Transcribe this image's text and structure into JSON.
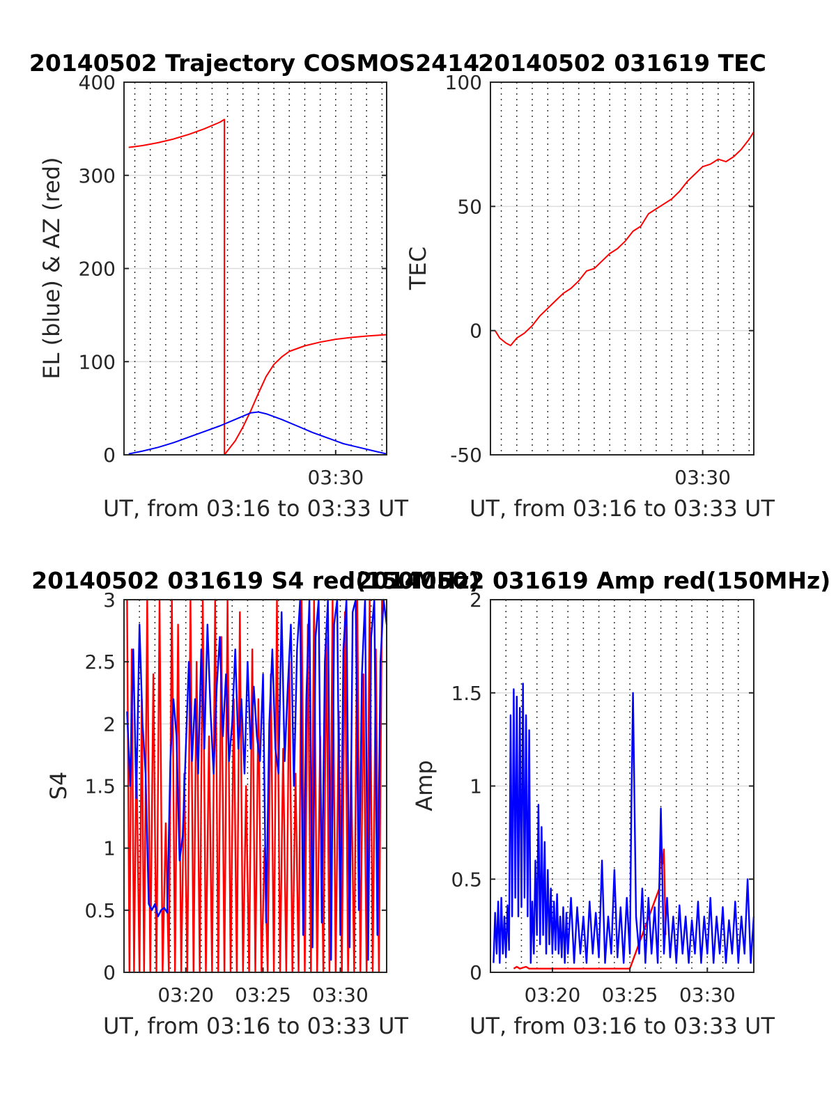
{
  "colors": {
    "el": "#0000ff",
    "az": "#ff0000",
    "s4_red": "#ff0000",
    "s4_blue": "#0000ff",
    "tec": "#ff0000",
    "amp_red": "#ff0000",
    "amp_blue": "#0000ff",
    "axis": "#262626",
    "grid": "#dddddd"
  },
  "chart_data": [
    {
      "id": "traj",
      "type": "line",
      "title": "20140502 Trajectory COSMOS2414",
      "xlabel": "UT, from 03:16 to 03:33 UT",
      "ylabel": "EL (blue) & AZ (red)",
      "xlim": [
        196.3,
        213.3
      ],
      "ylim": [
        0,
        400
      ],
      "yticks": [
        0,
        100,
        200,
        300,
        400
      ],
      "xticks": [
        {
          "x": 210,
          "label": "03:30"
        }
      ],
      "dotted_minor_x": [
        197,
        198,
        199,
        200,
        201,
        202,
        203,
        204,
        205,
        206,
        207,
        208,
        209,
        210,
        211,
        212,
        213
      ],
      "grid": true,
      "series": [
        {
          "color_key": "az",
          "x": [
            196.6,
            197.5,
            198.5,
            199.5,
            200.5,
            201.5,
            202.5,
            202.8,
            202.8,
            203.5,
            204.0,
            204.5,
            205.0,
            205.5,
            206.0,
            206.5,
            207.0,
            208.0,
            209.0,
            210.0,
            211.0,
            212.0,
            213.3
          ],
          "y": [
            330,
            332,
            335,
            339,
            344,
            350,
            357,
            360,
            0,
            15,
            30,
            47,
            66,
            84,
            97,
            105,
            111,
            117,
            121,
            124,
            126,
            127.5,
            129
          ]
        },
        {
          "name": "",
          "color_key": "el",
          "x": [
            196.6,
            197.5,
            198.5,
            199.5,
            200.5,
            201.5,
            202.5,
            203.5,
            204.5,
            205.0,
            205.5,
            206.5,
            207.5,
            208.5,
            209.5,
            210.5,
            211.5,
            212.5,
            213.3
          ],
          "y": [
            1,
            4,
            8,
            13,
            19,
            25,
            31,
            38,
            45,
            46,
            44,
            38,
            31,
            24,
            18,
            12,
            8,
            4,
            1
          ]
        }
      ]
    },
    {
      "id": "tec",
      "type": "line",
      "title": "20140502 031619 TEC",
      "xlabel": "UT, from 03:16 to 03:33 UT",
      "ylabel": "TEC",
      "xlim": [
        196.3,
        213.3
      ],
      "ylim": [
        -50,
        100
      ],
      "yticks": [
        -50,
        0,
        50,
        100
      ],
      "xticks": [
        {
          "x": 210,
          "label": "03:30"
        }
      ],
      "dotted_minor_x": [
        197,
        198,
        199,
        200,
        201,
        202,
        203,
        204,
        205,
        206,
        207,
        208,
        209,
        210,
        211,
        212,
        213
      ],
      "grid": true,
      "series": [
        {
          "color_key": "tec",
          "x": [
            196.6,
            196.9,
            197.3,
            197.6,
            198.0,
            198.5,
            199.0,
            199.5,
            200.0,
            200.5,
            201.0,
            201.5,
            202.0,
            202.5,
            203.0,
            203.5,
            204.0,
            204.5,
            205.0,
            205.5,
            206.0,
            206.5,
            207.0,
            207.5,
            208.0,
            208.5,
            209.0,
            209.5,
            210.0,
            210.5,
            211.0,
            211.5,
            212.0,
            212.5,
            213.0,
            213.3
          ],
          "y": [
            0,
            -3,
            -5,
            -6,
            -3,
            -1,
            2,
            6,
            9,
            12,
            15,
            17,
            20,
            24,
            25,
            28,
            31,
            33,
            36,
            40,
            42,
            47,
            49,
            51,
            53,
            56,
            60,
            63,
            66,
            67,
            69,
            68,
            70,
            73,
            77,
            80
          ]
        }
      ]
    },
    {
      "id": "s4",
      "type": "line",
      "title": "20140502 031619 S4 red(150MHz)",
      "xlabel": "UT, from 03:16 to 03:33 UT",
      "ylabel": "S4",
      "xlim": [
        196.0,
        213.0
      ],
      "ylim": [
        0,
        3
      ],
      "yticks": [
        0,
        0.5,
        1,
        1.5,
        2,
        2.5,
        3
      ],
      "xticks": [
        {
          "x": 200,
          "label": "03:20"
        },
        {
          "x": 205,
          "label": "03:25"
        },
        {
          "x": 210,
          "label": "03:30"
        }
      ],
      "dotted_minor_x": [
        197,
        198,
        199,
        200,
        201,
        202,
        203,
        204,
        205,
        206,
        207,
        208,
        209,
        210,
        211,
        212,
        213
      ],
      "grid": true,
      "series": [
        {
          "color_key": "s4_red",
          "x": [
            196.2,
            196.35,
            196.5,
            196.65,
            196.8,
            197.0,
            197.15,
            197.3,
            197.5,
            197.7,
            197.9,
            198.1,
            198.3,
            198.5,
            198.7,
            198.9,
            199.1,
            199.3,
            199.5,
            199.7,
            199.9,
            200.1,
            200.3,
            200.5,
            200.7,
            200.9,
            201.1,
            201.3,
            201.5,
            201.7,
            201.9,
            202.1,
            202.3,
            202.5,
            202.7,
            202.9,
            203.1,
            203.3,
            203.5,
            203.7,
            203.9,
            204.1,
            204.3,
            204.5,
            204.7,
            204.9,
            205.1,
            205.3,
            205.5,
            205.7,
            205.9,
            206.1,
            206.3,
            206.5,
            206.7,
            206.9,
            207.1,
            207.3,
            207.5,
            207.7,
            207.9,
            208.1,
            208.3,
            208.5,
            208.7,
            208.9,
            209.1,
            209.3,
            209.5,
            209.7,
            209.9,
            210.1,
            210.3,
            210.5,
            210.7,
            210.9,
            211.1,
            211.3,
            211.5,
            211.7,
            211.9,
            212.1,
            212.3,
            212.5,
            212.7
          ],
          "y": [
            3,
            0,
            2.6,
            0,
            1.8,
            0,
            2.2,
            0,
            3,
            0,
            2.4,
            0,
            3,
            0,
            1.2,
            0,
            3,
            0,
            2.8,
            0,
            1.6,
            0,
            3,
            0,
            2.5,
            0,
            3,
            0,
            1.9,
            0,
            3,
            0,
            2.7,
            0,
            3,
            0,
            2.2,
            0,
            2.9,
            0,
            1.5,
            0,
            2.6,
            0,
            2.2,
            0,
            1.0,
            0,
            2.4,
            0,
            3,
            0,
            1.8,
            0,
            2.5,
            0,
            1.6,
            0,
            3,
            0,
            2.8,
            0,
            3,
            0,
            1.9,
            0,
            2.7,
            0,
            3,
            0,
            2.1,
            0,
            2.9,
            0,
            1.7,
            0,
            3,
            0,
            2.4,
            0,
            3,
            0,
            2.6,
            0,
            3
          ]
        },
        {
          "color_key": "s4_blue",
          "x": [
            196.2,
            196.4,
            196.6,
            196.8,
            197.0,
            197.2,
            197.4,
            197.6,
            197.8,
            198.0,
            198.2,
            198.4,
            198.6,
            198.8,
            199.0,
            199.2,
            199.4,
            199.6,
            199.8,
            200.0,
            200.2,
            200.4,
            200.6,
            200.8,
            201.0,
            201.2,
            201.4,
            201.6,
            201.8,
            202.0,
            202.2,
            202.4,
            202.6,
            202.8,
            203.0,
            203.2,
            203.4,
            203.6,
            203.8,
            204.0,
            204.2,
            204.4,
            204.6,
            204.8,
            205.0,
            205.2,
            205.4,
            205.6,
            205.8,
            206.0,
            206.2,
            206.4,
            206.6,
            206.8,
            207.0,
            207.2,
            207.4,
            207.6,
            207.8,
            208.0,
            208.2,
            208.4,
            208.6,
            208.8,
            209.0,
            209.2,
            209.4,
            209.6,
            209.8,
            210.0,
            210.2,
            210.4,
            210.6,
            210.8,
            211.0,
            211.2,
            211.4,
            211.6,
            211.8,
            212.0,
            212.2,
            212.4,
            212.6,
            212.8,
            213.0
          ],
          "y": [
            2.1,
            1.5,
            2.6,
            1.4,
            2.8,
            2.0,
            1.6,
            0.55,
            0.5,
            0.55,
            0.45,
            0.5,
            0.52,
            0.48,
            1.7,
            2.2,
            1.9,
            0.9,
            1.1,
            1.8,
            2.5,
            1.7,
            2.2,
            1.6,
            2.6,
            1.8,
            2.8,
            2.1,
            1.6,
            2.3,
            2.7,
            1.9,
            2.4,
            1.7,
            2.0,
            2.6,
            1.8,
            2.2,
            1.6,
            2.5,
            1.8,
            2.3,
            1.9,
            1.7,
            2.4,
            0.4,
            2.0,
            2.6,
            1.8,
            1.6,
            2.9,
            1.7,
            2.3,
            2.8,
            1.5,
            2.6,
            3,
            0.3,
            2.2,
            3,
            0.2,
            2.7,
            3,
            0.4,
            2.5,
            3,
            0.1,
            2.8,
            3,
            0.3,
            2.6,
            3,
            0.2,
            2.9,
            3,
            0.5,
            2.4,
            3,
            0.1,
            2.7,
            3,
            0.3,
            2.5,
            3,
            2.8
          ]
        }
      ]
    },
    {
      "id": "amp",
      "type": "line",
      "title": "20140502 031619 Amp red(150MHz)",
      "xlabel": "UT, from 03:16 to 03:33 UT",
      "ylabel": "Amp",
      "xlim": [
        196.0,
        213.0
      ],
      "ylim": [
        0,
        2
      ],
      "yticks": [
        0,
        0.5,
        1,
        1.5,
        2
      ],
      "xticks": [
        {
          "x": 200,
          "label": "03:20"
        },
        {
          "x": 205,
          "label": "03:25"
        },
        {
          "x": 210,
          "label": "03:30"
        }
      ],
      "dotted_minor_x": [
        197,
        198,
        199,
        200,
        201,
        202,
        203,
        204,
        205,
        206,
        207,
        208,
        209,
        210,
        211,
        212,
        213
      ],
      "grid": true,
      "series": [
        {
          "color_key": "amp_red",
          "x": [
            197.5,
            197.7,
            197.9,
            198.3,
            198.5,
            205.0,
            206.9,
            207.0,
            207.1,
            207.2,
            207.3
          ],
          "y": [
            0.02,
            0.03,
            0.02,
            0.03,
            0.02,
            0.02,
            0.45,
            0.72,
            0.58,
            0.66,
            0.2
          ]
        },
        {
          "color_key": "amp_blue",
          "x": [
            196.2,
            196.3,
            196.4,
            196.5,
            196.6,
            196.7,
            196.8,
            196.9,
            197.0,
            197.1,
            197.2,
            197.3,
            197.4,
            197.5,
            197.6,
            197.7,
            197.8,
            197.9,
            198.0,
            198.1,
            198.2,
            198.3,
            198.4,
            198.5,
            198.6,
            198.7,
            198.8,
            198.9,
            199.0,
            199.1,
            199.2,
            199.3,
            199.4,
            199.5,
            199.6,
            199.7,
            199.8,
            199.9,
            200.0,
            200.1,
            200.2,
            200.3,
            200.4,
            200.5,
            200.6,
            200.7,
            200.8,
            200.9,
            201.0,
            201.2,
            201.4,
            201.6,
            201.8,
            202.0,
            202.2,
            202.4,
            202.6,
            202.8,
            203.0,
            203.2,
            203.4,
            203.6,
            203.8,
            204.0,
            204.2,
            204.4,
            204.6,
            204.8,
            205.0,
            205.1,
            205.2,
            205.4,
            205.6,
            205.8,
            206.0,
            206.2,
            206.4,
            206.6,
            206.8,
            207.0,
            207.2,
            207.4,
            207.6,
            207.8,
            208.0,
            208.2,
            208.4,
            208.6,
            208.8,
            209.0,
            209.2,
            209.4,
            209.6,
            209.8,
            210.0,
            210.2,
            210.4,
            210.6,
            210.8,
            211.0,
            211.2,
            211.4,
            211.6,
            211.8,
            212.0,
            212.2,
            212.4,
            212.6,
            212.8,
            213.0
          ],
          "y": [
            0.05,
            0.32,
            0.1,
            0.38,
            0.05,
            0.4,
            0.1,
            0.3,
            0.08,
            0.36,
            0.12,
            1.38,
            0.3,
            1.52,
            0.4,
            1.48,
            0.3,
            1.42,
            0.35,
            1.55,
            0.4,
            1.38,
            0.3,
            1.3,
            0.05,
            0.38,
            0.1,
            0.6,
            0.2,
            0.9,
            0.15,
            0.78,
            0.2,
            0.7,
            0.1,
            0.55,
            0.15,
            0.45,
            0.1,
            0.38,
            0.12,
            0.42,
            0.1,
            0.3,
            0.08,
            0.35,
            0.05,
            0.32,
            0.1,
            0.4,
            0.05,
            0.35,
            0.1,
            0.3,
            0.05,
            0.38,
            0.1,
            0.32,
            0.08,
            0.6,
            0.05,
            0.3,
            0.1,
            0.55,
            0.08,
            0.35,
            0.05,
            0.4,
            0.1,
            0.9,
            1.5,
            0.3,
            0.1,
            0.45,
            0.05,
            0.4,
            0.1,
            0.35,
            0.05,
            0.88,
            0.1,
            0.4,
            0.08,
            0.3,
            0.05,
            0.36,
            0.1,
            0.3,
            0.05,
            0.28,
            0.1,
            0.38,
            0.05,
            0.3,
            0.1,
            0.4,
            0.05,
            0.3,
            0.1,
            0.35,
            0.05,
            0.28,
            0.1,
            0.38,
            0.05,
            0.3,
            0.1,
            0.5,
            0.05,
            0.3
          ]
        }
      ]
    }
  ]
}
